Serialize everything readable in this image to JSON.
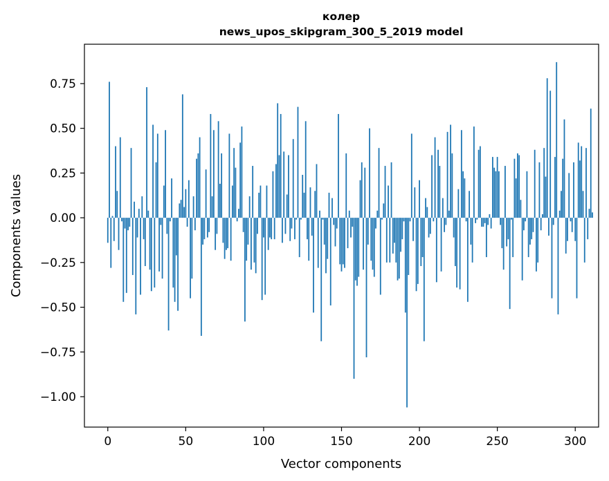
{
  "chart_data": {
    "type": "bar",
    "title": "колер",
    "subtitle": "news_upos_skipgram_300_5_2019 model",
    "xlabel": "Vector components",
    "ylabel": "Components values",
    "xlim": [
      -15,
      315
    ],
    "ylim": [
      -1.17,
      0.97
    ],
    "xticks": [
      0,
      50,
      100,
      150,
      200,
      250,
      300
    ],
    "yticks": [
      -1.0,
      -0.75,
      -0.5,
      -0.25,
      0.0,
      0.25,
      0.5,
      0.75
    ],
    "ytick_labels": [
      "−1.00",
      "−0.75",
      "−0.50",
      "−0.25",
      "0.00",
      "0.25",
      "0.50",
      "0.75"
    ],
    "bar_color": "#1f77b4",
    "values": [
      -0.14,
      0.76,
      -0.28,
      0.01,
      -0.13,
      0.4,
      0.15,
      -0.18,
      0.45,
      -0.02,
      -0.47,
      -0.06,
      -0.42,
      -0.07,
      -0.05,
      0.39,
      -0.32,
      0.09,
      -0.54,
      -0.11,
      0.05,
      -0.43,
      0.12,
      -0.12,
      -0.27,
      0.73,
      0.04,
      -0.29,
      -0.41,
      0.52,
      -0.39,
      0.31,
      0.47,
      -0.3,
      -0.04,
      -0.34,
      0.18,
      0.49,
      -0.09,
      -0.63,
      -0.02,
      0.22,
      -0.39,
      -0.47,
      -0.21,
      -0.52,
      0.08,
      0.1,
      0.69,
      0.06,
      0.16,
      -0.05,
      0.21,
      -0.45,
      -0.34,
      0.12,
      -0.07,
      0.33,
      0.36,
      0.45,
      -0.66,
      -0.15,
      -0.12,
      0.27,
      -0.11,
      -0.08,
      0.58,
      0.12,
      0.49,
      -0.18,
      -0.09,
      0.54,
      0.19,
      0.36,
      -0.14,
      -0.23,
      -0.18,
      -0.17,
      0.47,
      -0.24,
      0.18,
      0.39,
      0.28,
      -0.02,
      0.05,
      0.42,
      0.51,
      -0.08,
      -0.58,
      -0.24,
      -0.15,
      0.12,
      -0.29,
      0.29,
      -0.25,
      -0.31,
      -0.09,
      0.14,
      0.18,
      -0.46,
      -0.11,
      -0.43,
      0.18,
      -0.18,
      -0.11,
      -0.12,
      0.26,
      -0.12,
      0.3,
      0.64,
      0.35,
      0.58,
      -0.14,
      0.37,
      -0.09,
      0.13,
      0.35,
      -0.13,
      -0.06,
      0.44,
      -0.12,
      -0.01,
      0.62,
      -0.22,
      -0.01,
      0.24,
      0.14,
      0.54,
      -0.12,
      -0.24,
      0.17,
      -0.1,
      -0.53,
      0.15,
      0.3,
      -0.28,
      0.04,
      -0.69,
      -0.01,
      -0.15,
      -0.31,
      -0.23,
      0.14,
      -0.49,
      0.11,
      -0.04,
      -0.16,
      -0.06,
      0.58,
      -0.26,
      -0.3,
      -0.26,
      -0.28,
      0.36,
      -0.17,
      0.04,
      -0.11,
      -0.05,
      -0.9,
      -0.35,
      -0.38,
      -0.33,
      0.21,
      0.31,
      -0.29,
      0.28,
      -0.78,
      -0.15,
      0.5,
      -0.24,
      -0.29,
      -0.33,
      -0.06,
      0.04,
      0.39,
      -0.43,
      -0.01,
      0.08,
      0.29,
      -0.25,
      0.18,
      -0.25,
      0.31,
      -0.2,
      -0.14,
      -0.25,
      -0.35,
      -0.34,
      -0.19,
      -0.12,
      -0.02,
      -0.53,
      -1.06,
      -0.32,
      -0.02,
      0.47,
      -0.13,
      0.17,
      -0.41,
      -0.37,
      0.21,
      -0.27,
      -0.22,
      -0.69,
      0.11,
      0.06,
      -0.11,
      -0.09,
      0.35,
      -0.02,
      0.45,
      -0.36,
      0.38,
      0.29,
      -0.3,
      0.11,
      -0.08,
      -0.04,
      0.48,
      0.04,
      0.52,
      0.36,
      -0.11,
      -0.27,
      -0.39,
      0.16,
      -0.4,
      0.49,
      0.26,
      0.22,
      -0.02,
      -0.47,
      0.15,
      -0.15,
      -0.25,
      0.51,
      -0.03,
      -0.01,
      0.38,
      0.4,
      -0.05,
      -0.05,
      -0.03,
      -0.22,
      -0.04,
      0.02,
      -0.06,
      0.34,
      0.28,
      0.26,
      0.34,
      0.26,
      -0.04,
      -0.17,
      -0.29,
      0.29,
      -0.16,
      -0.12,
      -0.51,
      -0.01,
      -0.22,
      0.33,
      0.22,
      0.36,
      0.35,
      0.1,
      -0.35,
      -0.07,
      -0.02,
      0.26,
      -0.22,
      -0.15,
      -0.12,
      -0.08,
      0.38,
      -0.3,
      -0.25,
      0.31,
      -0.07,
      0.02,
      0.39,
      0.23,
      0.78,
      -0.1,
      0.71,
      -0.45,
      -0.04,
      0.34,
      0.87,
      -0.54,
      0.04,
      0.15,
      0.33,
      0.55,
      -0.2,
      -0.13,
      0.25,
      -0.02,
      -0.08,
      0.31,
      -0.13,
      -0.45,
      0.42,
      0.32,
      0.4,
      0.15,
      -0.25,
      0.39,
      -0.12,
      0.05,
      0.61,
      0.03
    ]
  }
}
